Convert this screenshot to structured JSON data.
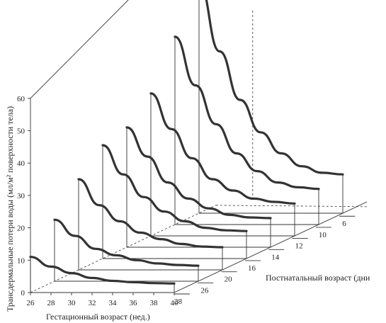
{
  "chart_data": {
    "type": "line",
    "title": "",
    "ylabel": "Трансдермальные потери воды (мл/м² поверхности тела)",
    "xlabel": "Гестационный возраст (нед.)",
    "zlabel": "Постнатальный возраст (дни",
    "ylim": [
      0,
      60
    ],
    "y_ticks": [
      "0",
      "10",
      "20",
      "30",
      "40",
      "50",
      "60"
    ],
    "x_ticks": [
      "26",
      "28",
      "30",
      "32",
      "34",
      "36",
      "38",
      "40"
    ],
    "z_ticks": [
      "28",
      "26",
      "20",
      "16",
      "14",
      "12",
      "10",
      "6"
    ],
    "x": [
      26,
      28,
      30,
      32,
      34,
      36,
      38,
      40
    ],
    "series": [
      {
        "depth": 0,
        "values": [
          11,
          8,
          6,
          4.5,
          3.6,
          3.2,
          2.9,
          2.8
        ]
      },
      {
        "depth": 1,
        "values": [
          19,
          14,
          10,
          8,
          6.5,
          5.5,
          5,
          4.8
        ]
      },
      {
        "depth": 2,
        "values": [
          28,
          20,
          15,
          11.5,
          9.5,
          8,
          7.2,
          7
        ]
      },
      {
        "depth": 3,
        "values": [
          35,
          26,
          19,
          14.5,
          11.5,
          9.5,
          8.7,
          8.5
        ]
      },
      {
        "depth": 4,
        "values": [
          37,
          28,
          20,
          15,
          12,
          10,
          9.2,
          9
        ]
      },
      {
        "depth": 5,
        "values": [
          44,
          33,
          24,
          17.5,
          14,
          11.5,
          10.5,
          10
        ]
      },
      {
        "depth": 6,
        "values": [
          58,
          43,
          31,
          22,
          16.5,
          13,
          11.5,
          11
        ]
      },
      {
        "depth": 7,
        "values": [
          71,
          50,
          35,
          25,
          18.5,
          14.5,
          12.5,
          12
        ]
      }
    ]
  }
}
